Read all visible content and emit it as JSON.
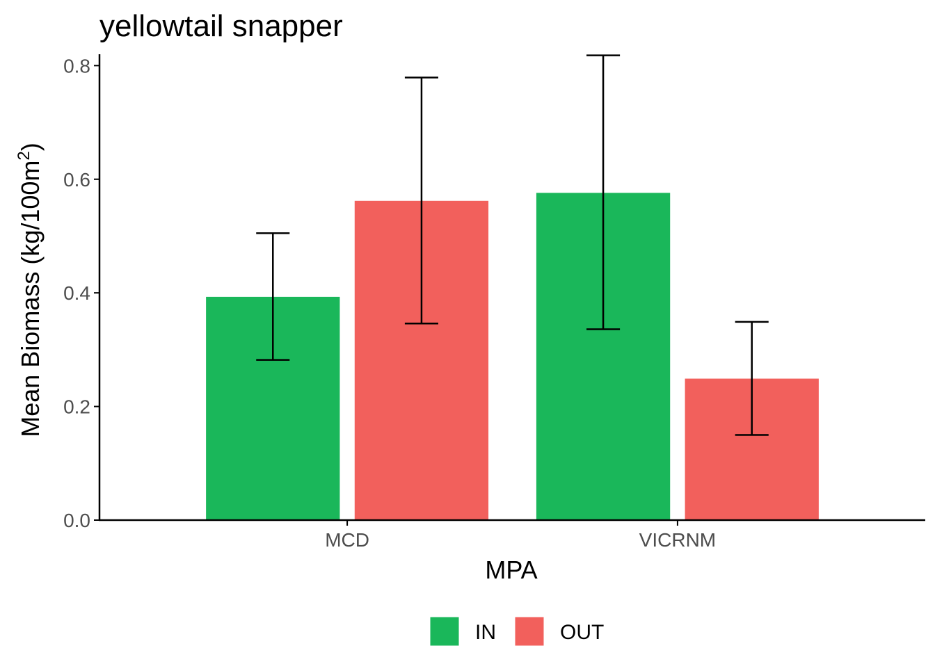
{
  "chart_data": {
    "type": "bar",
    "title": "yellowtail snapper",
    "xlabel": "MPA",
    "ylabel_main": "Mean Biomass (kg/100m",
    "ylabel_sup": "2",
    "ylabel_close": ")",
    "categories": [
      "MCD",
      "VICRNM"
    ],
    "series": [
      {
        "name": "IN",
        "color": "#1AB75A",
        "values": [
          0.393,
          0.576
        ],
        "err_low": [
          0.282,
          0.336
        ],
        "err_high": [
          0.505,
          0.818
        ]
      },
      {
        "name": "OUT",
        "color": "#F2605C",
        "values": [
          0.562,
          0.249
        ],
        "err_low": [
          0.346,
          0.15
        ],
        "err_high": [
          0.779,
          0.349
        ]
      }
    ],
    "ylim": [
      0,
      0.82
    ],
    "yticks": [
      0.0,
      0.2,
      0.4,
      0.6,
      0.8
    ],
    "ytick_labels": [
      "0.0",
      "0.2",
      "0.4",
      "0.6",
      "0.8"
    ],
    "grid": false,
    "legend_position": "bottom"
  }
}
